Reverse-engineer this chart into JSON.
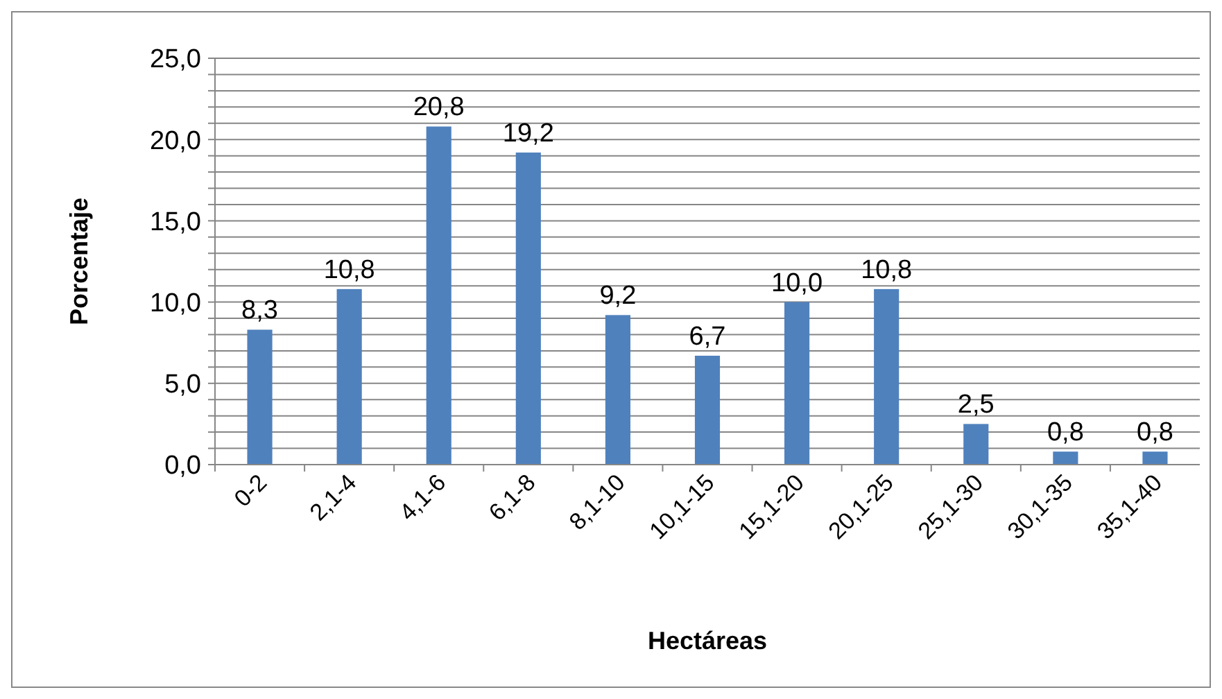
{
  "chart_data": {
    "type": "bar",
    "xlabel": "Hectáreas",
    "ylabel": "Porcentaje",
    "categories": [
      "0-2",
      "2,1-4",
      "4,1-6",
      "6,1-8",
      "8,1-10",
      "10,1-15",
      "15,1-20",
      "20,1-25",
      "25,1-30",
      "30,1-35",
      "35,1-40"
    ],
    "values": [
      8.3,
      10.8,
      20.8,
      19.2,
      9.2,
      6.7,
      10.0,
      10.8,
      2.5,
      0.8,
      0.8
    ],
    "value_labels": [
      "8,3",
      "10,8",
      "20,8",
      "19,2",
      "9,2",
      "6,7",
      "10,0",
      "10,8",
      "2,5",
      "0,8",
      "0,8"
    ],
    "color": "#4f81bd",
    "ylim": [
      0,
      25
    ],
    "yticks": [
      {
        "value": 0,
        "label": "0,0"
      },
      {
        "value": 1,
        "label": null
      },
      {
        "value": 2,
        "label": null
      },
      {
        "value": 3,
        "label": null
      },
      {
        "value": 4,
        "label": null
      },
      {
        "value": 5,
        "label": "5,0"
      },
      {
        "value": 6,
        "label": null
      },
      {
        "value": 7,
        "label": null
      },
      {
        "value": 8,
        "label": null
      },
      {
        "value": 9,
        "label": null
      },
      {
        "value": 10,
        "label": "10,0"
      },
      {
        "value": 11,
        "label": null
      },
      {
        "value": 12,
        "label": null
      },
      {
        "value": 13,
        "label": null
      },
      {
        "value": 14,
        "label": null
      },
      {
        "value": 15,
        "label": "15,0"
      },
      {
        "value": 16,
        "label": null
      },
      {
        "value": 17,
        "label": null
      },
      {
        "value": 18,
        "label": null
      },
      {
        "value": 19,
        "label": null
      },
      {
        "value": 20,
        "label": "20,0"
      },
      {
        "value": 21,
        "label": null
      },
      {
        "value": 22,
        "label": null
      },
      {
        "value": 23,
        "label": null
      },
      {
        "value": 24,
        "label": null
      },
      {
        "value": 25,
        "label": "25,0"
      }
    ],
    "grid": "y"
  }
}
